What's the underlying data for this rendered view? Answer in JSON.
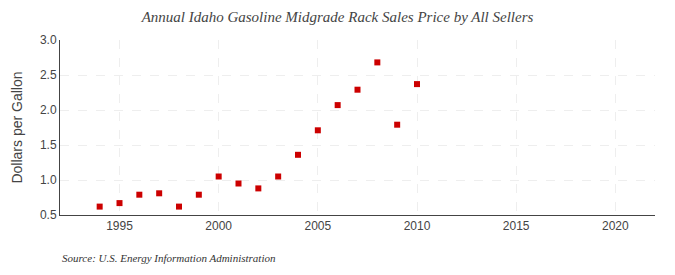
{
  "chart_data": {
    "type": "scatter",
    "title": "Annual Idaho Gasoline Midgrade Rack Sales Price by All Sellers",
    "ylabel": "Dollars per Gallon",
    "annotations": [
      "Source: U.S. Energy Information Administration"
    ],
    "x": [
      1994,
      1995,
      1996,
      1997,
      1998,
      1999,
      2000,
      2001,
      2002,
      2003,
      2004,
      2005,
      2006,
      2007,
      2008,
      2009,
      2010
    ],
    "values": [
      0.62,
      0.67,
      0.79,
      0.81,
      0.62,
      0.79,
      1.05,
      0.95,
      0.88,
      1.05,
      1.36,
      1.71,
      2.07,
      2.29,
      2.68,
      1.79,
      2.37
    ],
    "color": "#cc0000",
    "marker": "square",
    "xlim": [
      1992,
      2022
    ],
    "ylim": [
      0.5,
      3.0
    ],
    "xticks": [
      1995,
      2000,
      2005,
      2010,
      2015,
      2020
    ],
    "yticks": [
      0.5,
      {
        "value": 1.0,
        "label": "1.0"
      },
      1.5,
      {
        "value": 2.0,
        "label": "2.0"
      },
      2.5,
      {
        "value": 3.0,
        "label": "3.0"
      }
    ],
    "grid": true
  }
}
